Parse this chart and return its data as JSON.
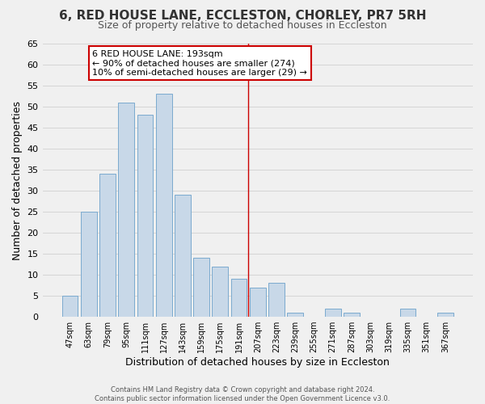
{
  "title": "6, RED HOUSE LANE, ECCLESTON, CHORLEY, PR7 5RH",
  "subtitle": "Size of property relative to detached houses in Eccleston",
  "xlabel": "Distribution of detached houses by size in Eccleston",
  "ylabel": "Number of detached properties",
  "bar_labels": [
    "47sqm",
    "63sqm",
    "79sqm",
    "95sqm",
    "111sqm",
    "127sqm",
    "143sqm",
    "159sqm",
    "175sqm",
    "191sqm",
    "207sqm",
    "223sqm",
    "239sqm",
    "255sqm",
    "271sqm",
    "287sqm",
    "303sqm",
    "319sqm",
    "335sqm",
    "351sqm",
    "367sqm"
  ],
  "bar_values": [
    5,
    25,
    34,
    51,
    48,
    53,
    29,
    14,
    12,
    9,
    7,
    8,
    1,
    0,
    2,
    1,
    0,
    0,
    2,
    0,
    1
  ],
  "bar_color": "#c8d8e8",
  "bar_edge_color": "#7baacf",
  "grid_color": "#d0d0d0",
  "ylim": [
    0,
    65
  ],
  "yticks": [
    0,
    5,
    10,
    15,
    20,
    25,
    30,
    35,
    40,
    45,
    50,
    55,
    60,
    65
  ],
  "vline_x_index": 9.5,
  "annotation_title": "6 RED HOUSE LANE: 193sqm",
  "annotation_line1": "← 90% of detached houses are smaller (274)",
  "annotation_line2": "10% of semi-detached houses are larger (29) →",
  "annotation_box_color": "#ffffff",
  "annotation_box_edge_color": "#cc0000",
  "footer_line1": "Contains HM Land Registry data © Crown copyright and database right 2024.",
  "footer_line2": "Contains public sector information licensed under the Open Government Licence v3.0.",
  "background_color": "#f0f0f0",
  "title_fontsize": 11,
  "subtitle_fontsize": 9,
  "xlabel_fontsize": 9,
  "ylabel_fontsize": 9,
  "tick_fontsize": 8,
  "xtick_fontsize": 7,
  "annotation_fontsize": 8,
  "footer_fontsize": 6
}
